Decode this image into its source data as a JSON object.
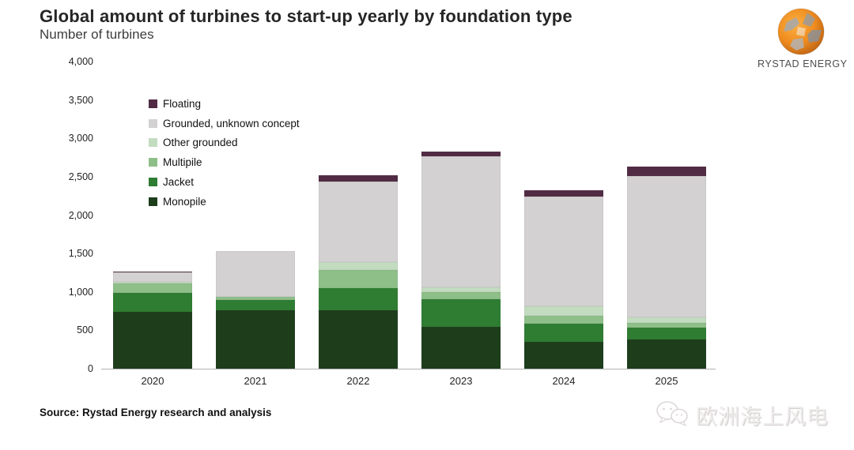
{
  "header": {
    "title": "Global amount of turbines to start-up yearly by foundation type",
    "subtitle": "Number of turbines",
    "logo_text": "RYSTAD ENERGY"
  },
  "chart_data": {
    "type": "bar",
    "stacked": true,
    "title": "Global amount of turbines to start-up yearly by foundation type",
    "ylabel": "Number of turbines",
    "xlabel": "",
    "grid": false,
    "legend_position": "upper-left-inside",
    "categories": [
      "2020",
      "2021",
      "2022",
      "2023",
      "2024",
      "2025"
    ],
    "series": [
      {
        "name": "Monopile",
        "color": "#1d3d1b",
        "values": [
          740,
          760,
          760,
          550,
          350,
          380
        ]
      },
      {
        "name": "Jacket",
        "color": "#2e7d32",
        "values": [
          250,
          130,
          290,
          350,
          240,
          150
        ]
      },
      {
        "name": "Multipile",
        "color": "#8ebf89",
        "values": [
          120,
          50,
          240,
          100,
          100,
          70
        ]
      },
      {
        "name": "Other grounded",
        "color": "#c3dcc0",
        "values": [
          25,
          0,
          100,
          60,
          120,
          70
        ]
      },
      {
        "name": "Grounded, unknown concept",
        "color": "#d3d1d1",
        "values": [
          115,
          590,
          1050,
          1710,
          1430,
          1840
        ]
      },
      {
        "name": "Floating",
        "color": "#512b44",
        "values": [
          20,
          0,
          80,
          60,
          80,
          120
        ]
      }
    ],
    "totals": [
      1270,
      1530,
      2520,
      2830,
      2320,
      2630
    ],
    "legend_order": [
      "Floating",
      "Grounded, unknown concept",
      "Other grounded",
      "Multipile",
      "Jacket",
      "Monopile"
    ],
    "ylim": [
      0,
      4000
    ],
    "ytick_step": 500,
    "ytick_labels": [
      "0",
      "500",
      "1,000",
      "1,500",
      "2,000",
      "2,500",
      "3,000",
      "3,500",
      "4,000"
    ]
  },
  "footer": {
    "source": "Source: Rystad Energy research and analysis",
    "watermark_text": "欧洲海上风电"
  }
}
